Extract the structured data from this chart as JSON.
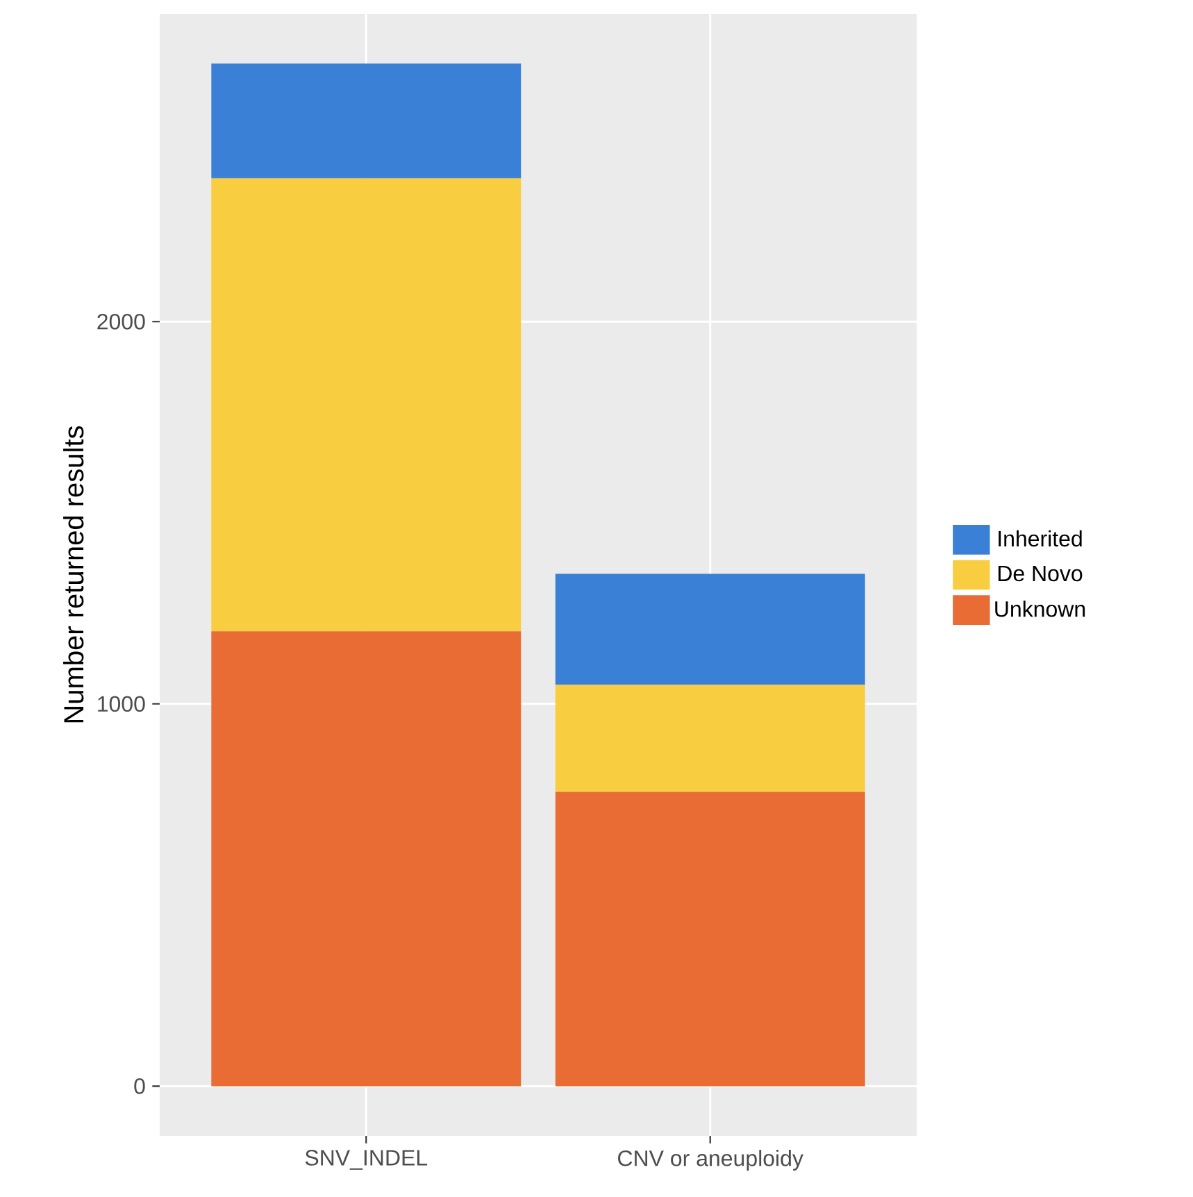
{
  "chart_data": {
    "type": "bar",
    "stacked": true,
    "ylabel": "Number returned results",
    "categories": [
      "SNV_INDEL",
      "CNV or aneuploidy"
    ],
    "series": [
      {
        "name": "Unknown",
        "color": "#e86c34",
        "values": [
          1190,
          770
        ]
      },
      {
        "name": "De Novo",
        "color": "#f8cd40",
        "values": [
          1185,
          280
        ]
      },
      {
        "name": "Inherited",
        "color": "#3a80d6",
        "values": [
          300,
          290
        ]
      }
    ],
    "ylim": [
      -130,
      2805
    ],
    "yticks": [
      0,
      1000,
      2000
    ],
    "grid": true,
    "legend": "right"
  }
}
